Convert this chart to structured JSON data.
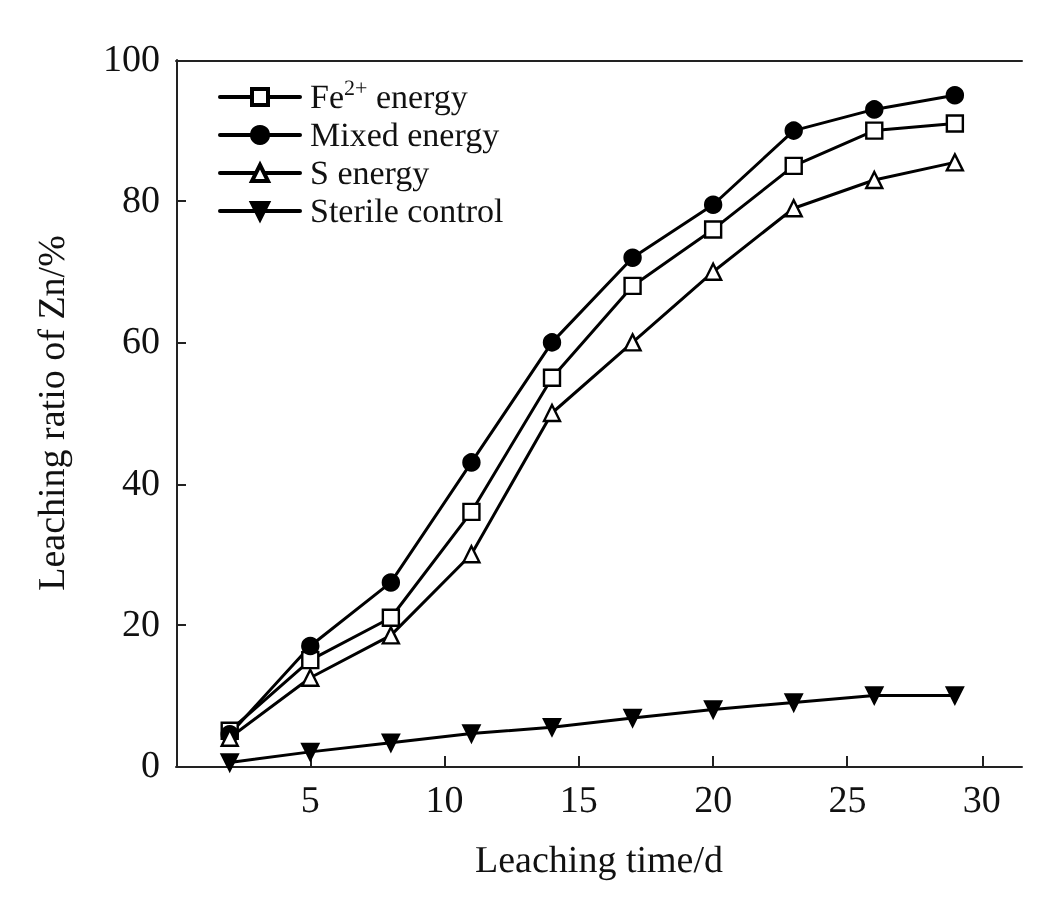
{
  "chart_data": {
    "type": "line",
    "xlabel": "Leaching time/d",
    "ylabel": "Leaching ratio of Zn/%",
    "x": [
      2,
      5,
      8,
      11,
      14,
      17,
      20,
      23,
      26,
      29
    ],
    "series": [
      {
        "name": "Fe$^{2+}$ energy",
        "color": "#000000",
        "marker": "square",
        "values": [
          5,
          15,
          21,
          36,
          55,
          68,
          76,
          85,
          90,
          91
        ]
      },
      {
        "name": "Mixed energy",
        "color": "#000000",
        "marker": "circle",
        "values": [
          4.5,
          17,
          26,
          43,
          60,
          72,
          79.5,
          90,
          93,
          95
        ]
      },
      {
        "name": "S energy",
        "color": "#000000",
        "marker": "triangle",
        "values": [
          4,
          12.5,
          18.5,
          30,
          50,
          60,
          70,
          79,
          83,
          85.5
        ]
      },
      {
        "name": "Sterile control",
        "color": "#000000",
        "marker": "triangle-down",
        "values": [
          0.5,
          2,
          3.3,
          4.6,
          5.5,
          6.8,
          8,
          9,
          10,
          10
        ]
      }
    ],
    "xlim": [
      0,
      31.5
    ],
    "xticks": [
      5,
      10,
      15,
      20,
      25,
      30
    ],
    "ylim": [
      0,
      100
    ],
    "yticks": [
      0,
      20,
      40,
      60,
      80,
      100
    ],
    "grid": false,
    "legend": "top left",
    "line_style": "solid"
  }
}
